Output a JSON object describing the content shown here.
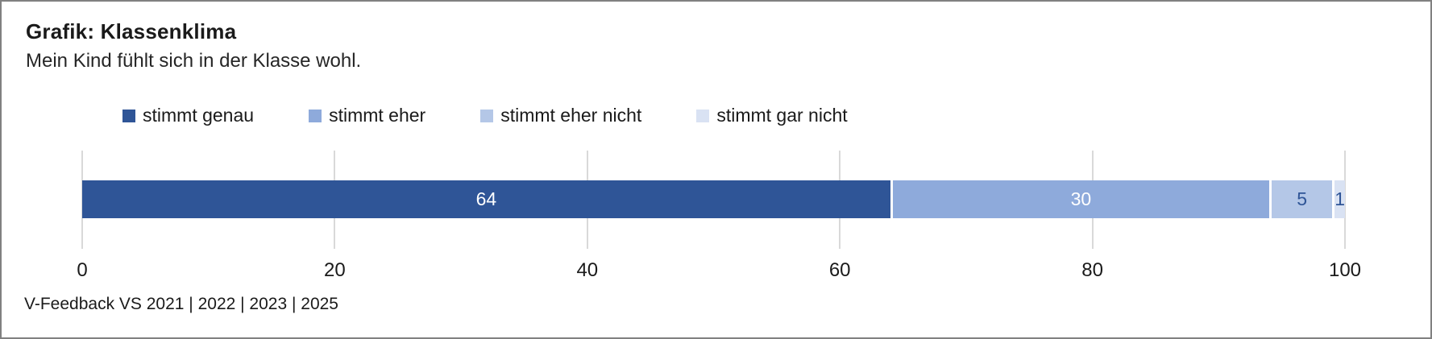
{
  "chart": {
    "title": "Grafik: Klassenklima",
    "subtitle": "Mein Kind fühlt sich in der Klasse wohl.",
    "footer": "V-Feedback VS 2021 | 2022 | 2023 | 2025"
  },
  "chart_data": {
    "type": "bar",
    "orientation": "horizontal",
    "stacked": true,
    "title": "Grafik: Klassenklima",
    "subtitle": "Mein Kind fühlt sich in der Klasse wohl.",
    "categories": [
      "Mein Kind fühlt sich in der Klasse wohl."
    ],
    "series": [
      {
        "name": "stimmt genau",
        "slug": "stimmt-genau",
        "values": [
          64
        ],
        "color": "#2F5597",
        "label_color": "#FFFFFF"
      },
      {
        "name": "stimmt eher",
        "slug": "stimmt-eher",
        "values": [
          30
        ],
        "color": "#8EAADB",
        "label_color": "#FFFFFF"
      },
      {
        "name": "stimmt eher nicht",
        "slug": "stimmt-eher-nicht",
        "values": [
          5
        ],
        "color": "#B4C7E7",
        "label_color": "#2F5597"
      },
      {
        "name": "stimmt gar nicht",
        "slug": "stimmt-gar-nicht",
        "values": [
          1
        ],
        "color": "#D9E2F3",
        "label_color": "#2F5597"
      }
    ],
    "xlabel": "",
    "ylabel": "",
    "xlim": [
      0,
      100
    ],
    "x_ticks": [
      0,
      20,
      40,
      60,
      80,
      100
    ],
    "grid": true,
    "gridline_color": "#D9D9D9",
    "legend_position": "top",
    "segment_separator_color": "#FFFFFF",
    "footer": "V-Feedback VS 2021 | 2022 | 2023 | 2025"
  }
}
